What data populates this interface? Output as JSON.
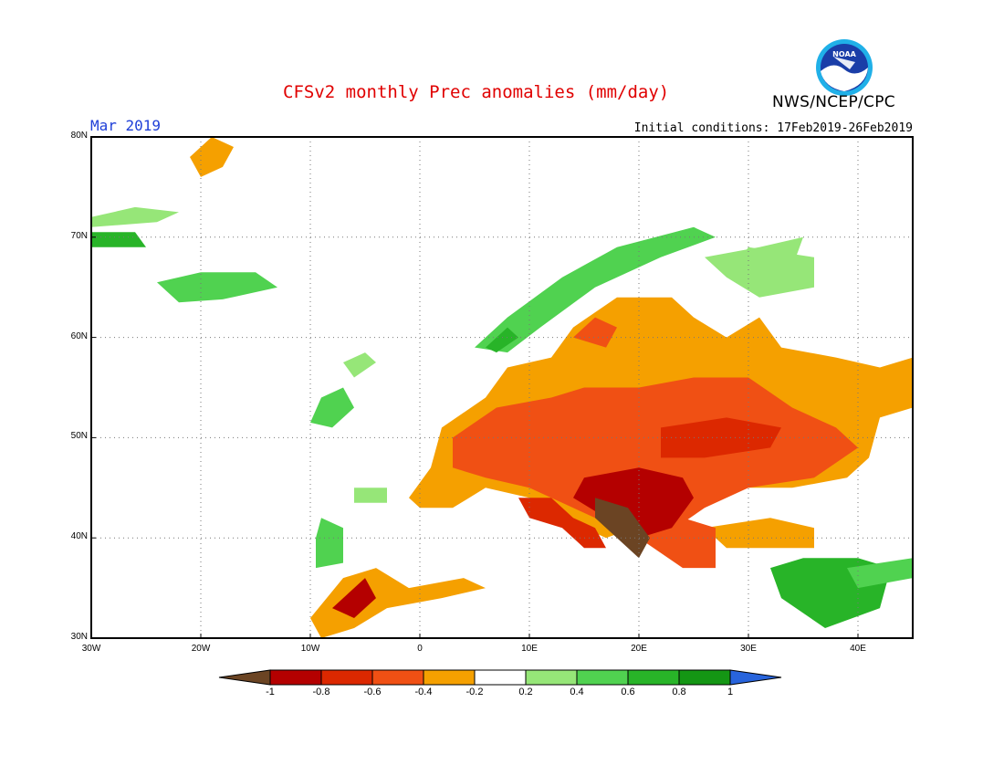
{
  "header": {
    "title": "CFSv2 monthly Prec anomalies (mm/day)",
    "org": "NWS/NCEP/CPC",
    "month": "Mar 2019",
    "initial_conditions": "Initial conditions: 17Feb2019-26Feb2019",
    "logo_text": "NOAA"
  },
  "map": {
    "lon_range": [
      -30,
      45
    ],
    "lat_range": [
      30,
      80
    ],
    "lat_labels": [
      "80N",
      "70N",
      "60N",
      "50N",
      "40N",
      "30N"
    ],
    "lon_labels": [
      "30W",
      "20W",
      "10W",
      "0",
      "10E",
      "20E",
      "30E",
      "40E"
    ],
    "grid": "dotted"
  },
  "colorbar": {
    "labels": [
      "-1",
      "-0.8",
      "-0.6",
      "-0.4",
      "-0.2",
      "0.2",
      "0.4",
      "0.6",
      "0.8",
      "1"
    ],
    "colors": {
      "below_-1": "#6b4423",
      "-1_-0.8": "#b40000",
      "-0.8_-0.6": "#dc2800",
      "-0.6_-0.4": "#f05014",
      "-0.4_-0.2": "#f5a000",
      "-0.2_0.2": "#ffffff",
      "0.2_0.4": "#96e678",
      "0.4_0.6": "#50d250",
      "0.6_0.8": "#28b428",
      "0.8_1": "#149614",
      "above_1": "#2864dc"
    }
  },
  "anomaly_regions": [
    {
      "name": "greenland-coast",
      "color": "#f5a000",
      "poly": [
        [
          -19,
          80
        ],
        [
          -17,
          79
        ],
        [
          -18,
          77
        ],
        [
          -20,
          76
        ],
        [
          -21,
          78
        ]
      ]
    },
    {
      "name": "greenland-east",
      "color": "#96e678",
      "poly": [
        [
          -30,
          71
        ],
        [
          -24,
          71.5
        ],
        [
          -22,
          72.5
        ],
        [
          -26,
          73
        ],
        [
          -30,
          72
        ]
      ]
    },
    {
      "name": "greenland-east-dark",
      "color": "#28b428",
      "poly": [
        [
          -30,
          69
        ],
        [
          -25,
          69
        ],
        [
          -26,
          70.5
        ],
        [
          -30,
          70.5
        ]
      ]
    },
    {
      "name": "iceland",
      "color": "#50d250",
      "poly": [
        [
          -24,
          65.5
        ],
        [
          -20,
          66.5
        ],
        [
          -15,
          66.5
        ],
        [
          -13,
          65
        ],
        [
          -18,
          63.8
        ],
        [
          -22,
          63.5
        ]
      ]
    },
    {
      "name": "norway-coast",
      "color": "#50d250",
      "poly": [
        [
          5,
          59
        ],
        [
          8,
          62
        ],
        [
          13,
          66
        ],
        [
          18,
          69
        ],
        [
          25,
          71
        ],
        [
          27,
          70
        ],
        [
          22,
          68
        ],
        [
          16,
          65
        ],
        [
          11,
          61
        ],
        [
          8,
          58.5
        ]
      ]
    },
    {
      "name": "norway-south",
      "color": "#28b428",
      "poly": [
        [
          6,
          59
        ],
        [
          8,
          61
        ],
        [
          9,
          60
        ],
        [
          7,
          58.5
        ]
      ]
    },
    {
      "name": "finland-north",
      "color": "#96e678",
      "poly": [
        [
          26,
          68
        ],
        [
          31,
          69
        ],
        [
          35,
          70
        ],
        [
          34,
          67
        ],
        [
          28,
          66
        ]
      ]
    },
    {
      "name": "russia-north",
      "color": "#96e678",
      "poly": [
        [
          30,
          69
        ],
        [
          36,
          68
        ],
        [
          36,
          65
        ],
        [
          31,
          64
        ],
        [
          28,
          66
        ]
      ]
    },
    {
      "name": "ireland",
      "color": "#50d250",
      "poly": [
        [
          -10,
          51.5
        ],
        [
          -8,
          51
        ],
        [
          -6,
          53
        ],
        [
          -7,
          55
        ],
        [
          -9,
          54
        ]
      ]
    },
    {
      "name": "scotland",
      "color": "#96e678",
      "poly": [
        [
          -6,
          56
        ],
        [
          -4,
          57.5
        ],
        [
          -5,
          58.5
        ],
        [
          -7,
          57.5
        ]
      ]
    },
    {
      "name": "portugal",
      "color": "#50d250",
      "poly": [
        [
          -9.5,
          37
        ],
        [
          -7,
          37.5
        ],
        [
          -7,
          41
        ],
        [
          -9,
          42
        ],
        [
          -9.5,
          40
        ]
      ]
    },
    {
      "name": "spain-nw",
      "color": "#96e678",
      "poly": [
        [
          -6,
          45
        ],
        [
          -3,
          45
        ],
        [
          -3,
          43.5
        ],
        [
          -6,
          43.5
        ]
      ]
    },
    {
      "name": "middle-east",
      "color": "#28b428",
      "poly": [
        [
          32,
          37
        ],
        [
          35,
          38
        ],
        [
          40,
          38
        ],
        [
          43,
          37
        ],
        [
          42,
          33
        ],
        [
          37,
          31
        ],
        [
          33,
          34
        ]
      ]
    },
    {
      "name": "middle-east-light",
      "color": "#50d250",
      "poly": [
        [
          39,
          37
        ],
        [
          45,
          38
        ],
        [
          45,
          36
        ],
        [
          40,
          35
        ]
      ]
    },
    {
      "name": "orange-europe-west",
      "color": "#f5a000",
      "poly": [
        [
          -1,
          44
        ],
        [
          1,
          47
        ],
        [
          2,
          51
        ],
        [
          6,
          54
        ],
        [
          8,
          57
        ],
        [
          12,
          58
        ],
        [
          14,
          61
        ],
        [
          18,
          64
        ],
        [
          23,
          64
        ],
        [
          25,
          62
        ],
        [
          28,
          60
        ],
        [
          31,
          62
        ],
        [
          33,
          59
        ],
        [
          38,
          58
        ],
        [
          42,
          57
        ],
        [
          45,
          58
        ],
        [
          45,
          53
        ],
        [
          42,
          52
        ],
        [
          41,
          48
        ],
        [
          39,
          46
        ],
        [
          34,
          45
        ],
        [
          30,
          45
        ],
        [
          26,
          44
        ],
        [
          22,
          42
        ],
        [
          17,
          40
        ],
        [
          13,
          42
        ],
        [
          10,
          44
        ],
        [
          6,
          45
        ],
        [
          3,
          43
        ],
        [
          0,
          43
        ]
      ]
    },
    {
      "name": "orange-morocco",
      "color": "#f5a000",
      "poly": [
        [
          -10,
          32
        ],
        [
          -7,
          36
        ],
        [
          -4,
          37
        ],
        [
          -1,
          35
        ],
        [
          4,
          36
        ],
        [
          6,
          35
        ],
        [
          2,
          34
        ],
        [
          -3,
          33
        ],
        [
          -6,
          31
        ],
        [
          -9,
          30
        ]
      ]
    },
    {
      "name": "orange-med-east",
      "color": "#f5a000",
      "poly": [
        [
          26,
          41
        ],
        [
          32,
          42
        ],
        [
          36,
          41
        ],
        [
          36,
          39
        ],
        [
          28,
          39
        ]
      ]
    },
    {
      "name": "red-central",
      "color": "#f05014",
      "poly": [
        [
          3,
          50
        ],
        [
          7,
          53
        ],
        [
          12,
          54
        ],
        [
          15,
          55
        ],
        [
          20,
          55
        ],
        [
          25,
          56
        ],
        [
          30,
          56
        ],
        [
          34,
          53
        ],
        [
          38,
          51
        ],
        [
          40,
          49
        ],
        [
          36,
          46
        ],
        [
          30,
          45
        ],
        [
          26,
          43
        ],
        [
          22,
          40
        ],
        [
          18,
          41
        ],
        [
          14,
          43
        ],
        [
          10,
          45
        ],
        [
          6,
          46
        ],
        [
          3,
          47
        ]
      ]
    },
    {
      "name": "red-balkan",
      "color": "#f05014",
      "poly": [
        [
          20,
          40
        ],
        [
          24,
          42
        ],
        [
          27,
          41
        ],
        [
          27,
          37
        ],
        [
          24,
          37
        ]
      ]
    },
    {
      "name": "red-scandinavia",
      "color": "#f05014",
      "poly": [
        [
          14,
          60
        ],
        [
          16,
          62
        ],
        [
          18,
          61
        ],
        [
          17,
          59
        ]
      ]
    },
    {
      "name": "dark-red-italy",
      "color": "#dc2800",
      "poly": [
        [
          9,
          44
        ],
        [
          12,
          44
        ],
        [
          14,
          42
        ],
        [
          16,
          41
        ],
        [
          17,
          39
        ],
        [
          15,
          39
        ],
        [
          13,
          41
        ],
        [
          10,
          42
        ]
      ]
    },
    {
      "name": "dark-red-ukraine",
      "color": "#dc2800",
      "poly": [
        [
          22,
          51
        ],
        [
          28,
          52
        ],
        [
          33,
          51
        ],
        [
          32,
          49
        ],
        [
          26,
          48
        ],
        [
          22,
          48
        ]
      ]
    },
    {
      "name": "dark-red-balkans",
      "color": "#b40000",
      "poly": [
        [
          15,
          46
        ],
        [
          20,
          47
        ],
        [
          24,
          46
        ],
        [
          25,
          44
        ],
        [
          23,
          41
        ],
        [
          20,
          40
        ],
        [
          17,
          42
        ],
        [
          14,
          44
        ]
      ]
    },
    {
      "name": "dark-red-spain",
      "color": "#b40000",
      "poly": [
        [
          -8,
          33
        ],
        [
          -5,
          36
        ],
        [
          -4,
          34
        ],
        [
          -6,
          32
        ]
      ]
    },
    {
      "name": "brown-adriatic",
      "color": "#6b4423",
      "poly": [
        [
          16,
          44
        ],
        [
          19,
          43
        ],
        [
          21,
          40
        ],
        [
          20,
          38
        ],
        [
          18,
          40
        ],
        [
          16,
          42
        ]
      ]
    }
  ]
}
